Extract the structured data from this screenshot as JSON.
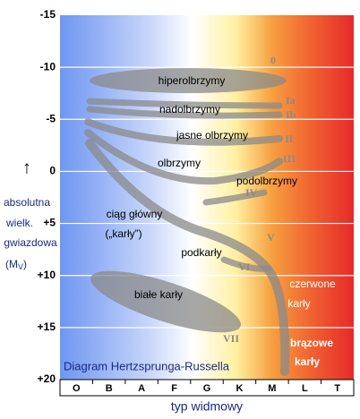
{
  "title": "Diagram Hertzsprunga-Russella",
  "x_axis": {
    "label": "typ widmowy",
    "categories": [
      "O",
      "B",
      "A",
      "F",
      "G",
      "K",
      "M",
      "L",
      "T"
    ]
  },
  "y_axis": {
    "arrow": "↑",
    "label": [
      "absolutna",
      "wielk.",
      "gwiazdowa"
    ],
    "unit_open": "(M",
    "unit_sub": "V",
    "unit_close": ")",
    "ticks": [
      "-15",
      "-10",
      "-5",
      "0",
      "+5",
      "+10",
      "+15",
      "+20"
    ]
  },
  "regions": {
    "hypergiants": "hiperolbrzymy",
    "supergiants": "nadolbrzymy",
    "bright_giants": "jasne olbrzymy",
    "giants": "olbrzymy",
    "subgiants": "podolbrzymy",
    "main_sequence": [
      "ciąg główny",
      "(„karły”)"
    ],
    "subdwarfs": "podkarły",
    "white_dwarfs": "białe karły",
    "red_dwarfs": [
      "czerwone",
      "karły"
    ],
    "brown_dwarfs": [
      "brązowe",
      "karły"
    ]
  },
  "classes": [
    "0",
    "Ia",
    "Ib",
    "II",
    "III",
    "IV",
    "V",
    "VI",
    "VII"
  ]
}
